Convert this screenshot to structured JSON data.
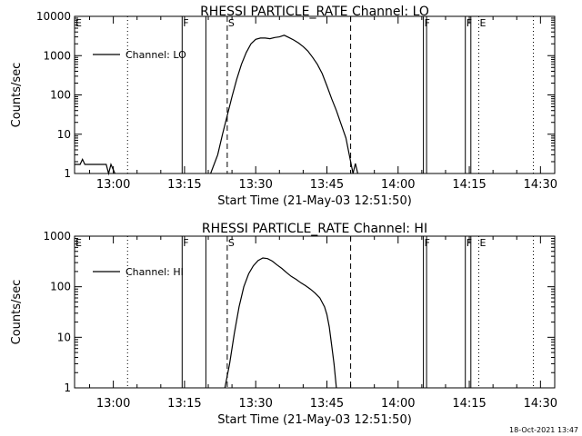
{
  "footer": {
    "timestamp": "18-Oct-2021 13:47"
  },
  "chart_data": [
    {
      "type": "line",
      "title": "RHESSI PARTICLE_RATE Channel: LO",
      "xlabel": "Start Time (21-May-03 12:51:50)",
      "ylabel": "Counts/sec",
      "yscale": "log",
      "ylim": [
        1,
        10000
      ],
      "xlim": [
        "12:51:50",
        "14:33:00"
      ],
      "x_ticks": [
        "13:00",
        "13:15",
        "13:30",
        "13:45",
        "14:00",
        "14:15",
        "14:30"
      ],
      "y_ticks": [
        "1",
        "10",
        "100",
        "1000",
        "10000"
      ],
      "legend": {
        "position": "top-left",
        "entries": [
          "Channel: LO"
        ]
      },
      "grid": false,
      "markers": [
        {
          "label": "E",
          "time": "12:51:50",
          "style": "solid"
        },
        {
          "label": "",
          "time": "13:03:00",
          "style": "dotted"
        },
        {
          "label": "F",
          "time": "13:14:30",
          "style": "solid"
        },
        {
          "label": "",
          "time": "13:19:30",
          "style": "solid"
        },
        {
          "label": "S",
          "time": "13:24:00",
          "style": "dashed"
        },
        {
          "label": "",
          "time": "13:50:00",
          "style": "dashed"
        },
        {
          "label": "F",
          "time": "14:05:20",
          "style": "solid"
        },
        {
          "label": "",
          "time": "14:06:00",
          "style": "solid"
        },
        {
          "label": "F",
          "time": "14:14:10",
          "style": "solid"
        },
        {
          "label": "",
          "time": "14:15:20",
          "style": "solid"
        },
        {
          "label": "E",
          "time": "14:17:00",
          "style": "dotted"
        },
        {
          "label": "",
          "time": "14:28:30",
          "style": "dotted"
        }
      ],
      "series": [
        {
          "segments": [
            {
              "x": [
                "12:51:50",
                "12:53:00",
                "12:53:30",
                "12:54:00",
                "12:58:30",
                "12:59:00",
                "12:59:30",
                "13:00:20"
              ],
              "y": [
                1.7,
                1.7,
                2.3,
                1.7,
                1.7,
                1.0,
                1.7,
                1.0
              ]
            },
            {
              "x": [
                "13:20:30",
                "13:22:00",
                "13:23:00",
                "13:24:00",
                "13:25:00",
                "13:26:00",
                "13:27:00",
                "13:28:00",
                "13:29:00",
                "13:30:00",
                "13:31:00",
                "13:32:00",
                "13:33:00",
                "13:34:00",
                "13:35:00",
                "13:36:00",
                "13:37:00",
                "13:38:00",
                "13:39:00",
                "13:40:00",
                "13:41:00",
                "13:42:00",
                "13:43:00",
                "13:44:00",
                "13:45:00",
                "13:46:00",
                "13:47:00",
                "13:48:00",
                "13:49:00",
                "13:49:30",
                "13:50:00",
                "13:50:30",
                "13:51:00",
                "13:51:30"
              ],
              "y": [
                1,
                3,
                10,
                30,
                90,
                250,
                600,
                1200,
                2000,
                2600,
                2800,
                2800,
                2700,
                2900,
                3000,
                3300,
                2900,
                2500,
                2100,
                1700,
                1300,
                900,
                600,
                350,
                170,
                80,
                40,
                18,
                8,
                4,
                2,
                1,
                1.8,
                1
              ]
            }
          ]
        }
      ]
    },
    {
      "type": "line",
      "title": "RHESSI PARTICLE_RATE Channel: HI",
      "xlabel": "Start Time (21-May-03 12:51:50)",
      "ylabel": "Counts/sec",
      "yscale": "log",
      "ylim": [
        1,
        1000
      ],
      "xlim": [
        "12:51:50",
        "14:33:00"
      ],
      "x_ticks": [
        "13:00",
        "13:15",
        "13:30",
        "13:45",
        "14:00",
        "14:15",
        "14:30"
      ],
      "y_ticks": [
        "1",
        "10",
        "100",
        "1000"
      ],
      "legend": {
        "position": "top-left",
        "entries": [
          "Channel: HI"
        ]
      },
      "grid": false,
      "markers": [
        {
          "label": "E",
          "time": "12:51:50",
          "style": "solid"
        },
        {
          "label": "",
          "time": "13:03:00",
          "style": "dotted"
        },
        {
          "label": "F",
          "time": "13:14:30",
          "style": "solid"
        },
        {
          "label": "",
          "time": "13:19:30",
          "style": "solid"
        },
        {
          "label": "S",
          "time": "13:24:00",
          "style": "dashed"
        },
        {
          "label": "",
          "time": "13:50:00",
          "style": "dashed"
        },
        {
          "label": "F",
          "time": "14:05:20",
          "style": "solid"
        },
        {
          "label": "",
          "time": "14:06:00",
          "style": "solid"
        },
        {
          "label": "F",
          "time": "14:14:10",
          "style": "solid"
        },
        {
          "label": "",
          "time": "14:15:20",
          "style": "solid"
        },
        {
          "label": "E",
          "time": "14:17:00",
          "style": "dotted"
        },
        {
          "label": "",
          "time": "14:28:30",
          "style": "dotted"
        }
      ],
      "series": [
        {
          "segments": [
            {
              "x": [
                "13:23:30",
                "13:24:30",
                "13:25:30",
                "13:26:30",
                "13:27:30",
                "13:28:30",
                "13:29:30",
                "13:30:30",
                "13:31:30",
                "13:32:30",
                "13:33:30",
                "13:34:30",
                "13:35:30",
                "13:36:30",
                "13:37:30",
                "13:38:30",
                "13:39:30",
                "13:40:30",
                "13:41:30",
                "13:42:30",
                "13:43:30",
                "13:44:30",
                "13:45:00",
                "13:45:30",
                "13:46:00",
                "13:46:30",
                "13:47:00"
              ],
              "y": [
                1,
                3,
                12,
                40,
                100,
                180,
                260,
                330,
                370,
                360,
                320,
                270,
                230,
                190,
                160,
                140,
                120,
                105,
                90,
                75,
                60,
                40,
                28,
                16,
                7,
                3,
                1
              ]
            }
          ]
        }
      ]
    }
  ]
}
